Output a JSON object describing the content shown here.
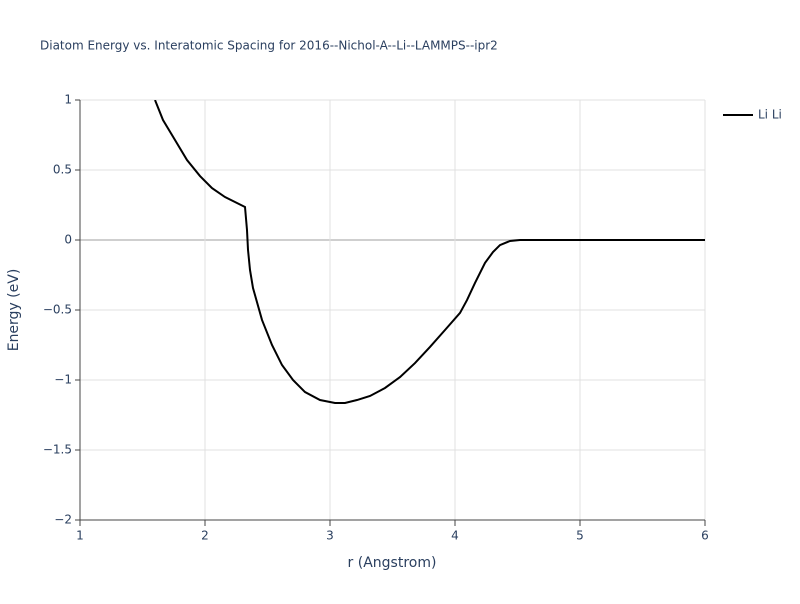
{
  "chart_data": {
    "type": "line",
    "title": "Diatom Energy vs. Interatomic Spacing for 2016--Nichol-A--Li--LAMMPS--ipr2",
    "x_label": "r (Angstrom)",
    "y_label": "Energy (eV)",
    "x": [
      1.6,
      1.664,
      1.76,
      1.856,
      1.96,
      2.056,
      2.16,
      2.32,
      2.336,
      2.344,
      2.36,
      2.384,
      2.456,
      2.536,
      2.616,
      2.704,
      2.8,
      2.92,
      3.04,
      3.12,
      3.216,
      3.32,
      3.44,
      3.56,
      3.68,
      3.8,
      3.92,
      4.04,
      4.096,
      4.16,
      4.24,
      4.304,
      4.36,
      4.44,
      4.52,
      6.0
    ],
    "series": [
      {
        "name": "Li Li",
        "color": "#000000",
        "values": [
          1.0,
          0.857,
          0.714,
          0.571,
          0.457,
          0.371,
          0.307,
          0.236,
          0.071,
          -0.07,
          -0.214,
          -0.343,
          -0.571,
          -0.75,
          -0.893,
          -1.0,
          -1.086,
          -1.143,
          -1.164,
          -1.164,
          -1.143,
          -1.114,
          -1.057,
          -0.979,
          -0.879,
          -0.764,
          -0.643,
          -0.521,
          -0.429,
          -0.307,
          -0.164,
          -0.086,
          -0.036,
          -0.007,
          0,
          0
        ]
      }
    ],
    "xlim": [
      1,
      6
    ],
    "ylim": [
      -2,
      1
    ],
    "xticks": [
      1,
      2,
      3,
      4,
      5,
      6
    ],
    "yticks": [
      {
        "value": -2,
        "label": "−2"
      },
      {
        "value": -1.5,
        "label": "−1.5"
      },
      {
        "value": -1,
        "label": "−1"
      },
      {
        "value": -0.5,
        "label": "−0.5"
      },
      0,
      0.5,
      1
    ],
    "grid": true,
    "legend": "right"
  }
}
